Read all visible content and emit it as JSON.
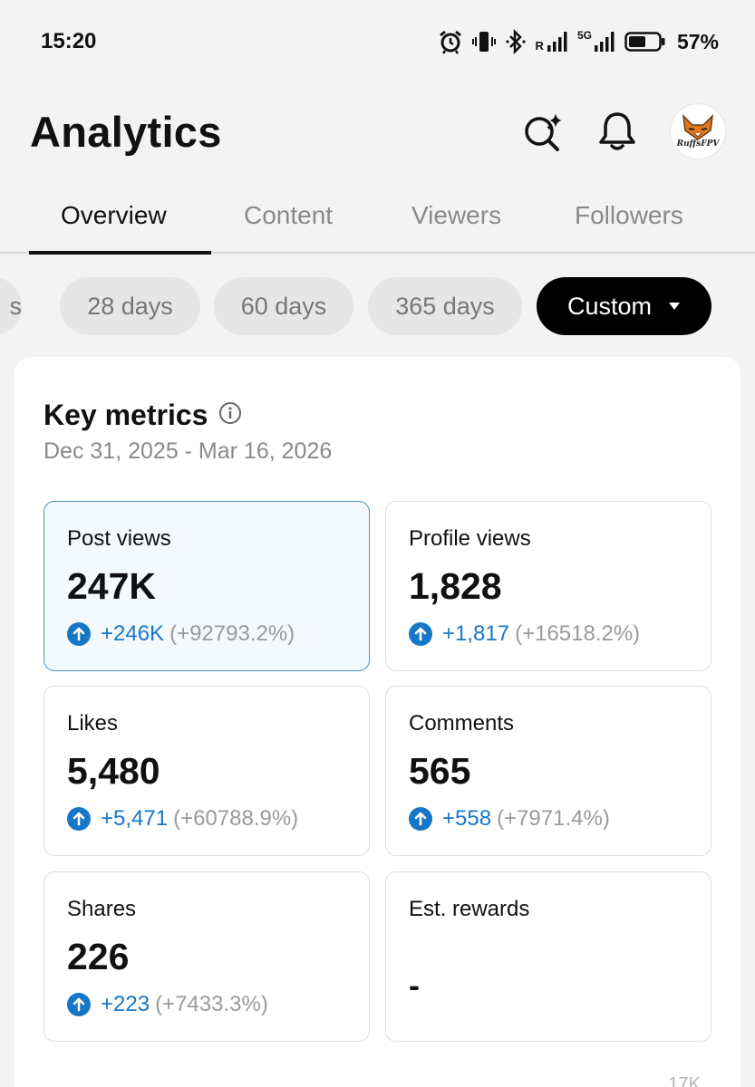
{
  "status_bar": {
    "time": "15:20",
    "battery": "57%",
    "roaming": "R",
    "network": "5G"
  },
  "header": {
    "title": "Analytics",
    "avatar_text": "RuffsFPV"
  },
  "tabs": [
    {
      "label": "Overview"
    },
    {
      "label": "Content"
    },
    {
      "label": "Viewers"
    },
    {
      "label": "Followers"
    }
  ],
  "periods": {
    "partial": "s",
    "options": [
      "28 days",
      "60 days",
      "365 days"
    ],
    "selected": "Custom"
  },
  "key_metrics": {
    "title": "Key metrics",
    "date_range": "Dec 31, 2025 - Mar 16, 2026",
    "items": [
      {
        "label": "Post views",
        "value": "247K",
        "delta": "+246K",
        "pct": "(+92793.2%)"
      },
      {
        "label": "Profile views",
        "value": "1,828",
        "delta": "+1,817",
        "pct": "(+16518.2%)"
      },
      {
        "label": "Likes",
        "value": "5,480",
        "delta": "+5,471",
        "pct": "(+60788.9%)"
      },
      {
        "label": "Comments",
        "value": "565",
        "delta": "+558",
        "pct": "(+7971.4%)"
      },
      {
        "label": "Shares",
        "value": "226",
        "delta": "+223",
        "pct": "(+7433.3%)"
      },
      {
        "label": "Est. rewards",
        "value": "-"
      }
    ]
  },
  "chart_peek": {
    "axis_label": "17K"
  },
  "colors": {
    "accent_blue": "#1777c7",
    "selected_border": "#4a95c9",
    "chip_active": "#000000"
  }
}
